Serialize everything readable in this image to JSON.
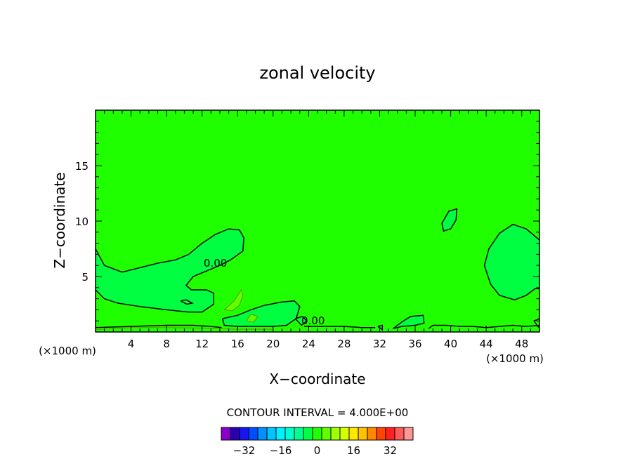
{
  "chart_data": {
    "type": "contour",
    "title": "zonal velocity",
    "xlabel": "X−coordinate",
    "ylabel": "Z−coordinate",
    "x_unit_label": "(×1000 m)",
    "z_unit_label": "(×1000 m)",
    "xlim": [
      0,
      50
    ],
    "ylim": [
      0,
      20
    ],
    "x_ticks": [
      4,
      8,
      12,
      16,
      20,
      24,
      28,
      32,
      36,
      40,
      44,
      48
    ],
    "y_ticks": [
      5,
      10,
      15
    ],
    "contour_interval_text": "CONTOUR INTERVAL = 4.000E+00",
    "contour_labels": [
      {
        "text": "0.00",
        "x": 13.5,
        "z": 6.2
      },
      {
        "text": "0.00",
        "x": 24.5,
        "z": 1.0
      }
    ],
    "contours_zero": [
      [
        [
          0,
          7.5
        ],
        [
          1,
          6
        ],
        [
          3,
          5.4
        ],
        [
          5,
          5.8
        ],
        [
          7,
          6.2
        ],
        [
          9,
          6.5
        ],
        [
          10.5,
          7
        ],
        [
          12,
          8
        ],
        [
          13.5,
          8.8
        ],
        [
          15,
          9.3
        ],
        [
          16.2,
          9.2
        ],
        [
          16.7,
          8.5
        ],
        [
          16.6,
          7.3
        ],
        [
          15.2,
          6.5
        ],
        [
          14,
          6
        ],
        [
          12.5,
          5.5
        ],
        [
          11,
          5
        ],
        [
          10.2,
          4.2
        ],
        [
          10.8,
          3.8
        ],
        [
          12.5,
          3.8
        ],
        [
          13.3,
          3.5
        ],
        [
          13.3,
          2.5
        ],
        [
          12,
          1.8
        ],
        [
          10.5,
          1.8
        ],
        [
          8,
          2
        ],
        [
          5,
          2.3
        ],
        [
          2.5,
          2.6
        ],
        [
          1,
          3
        ],
        [
          0,
          3.8
        ]
      ],
      [
        [
          14.3,
          1.2
        ],
        [
          16,
          1.5
        ],
        [
          17.5,
          2
        ],
        [
          19,
          2.4
        ],
        [
          21,
          2.7
        ],
        [
          22.4,
          2.8
        ],
        [
          23,
          2.3
        ],
        [
          22.6,
          1.2
        ],
        [
          21.5,
          0.6
        ],
        [
          20,
          0.5
        ],
        [
          18,
          0.5
        ],
        [
          16,
          0.5
        ],
        [
          14.5,
          0.6
        ],
        [
          14.3,
          1.2
        ]
      ],
      [
        [
          39,
          9.8
        ],
        [
          39.8,
          10.9
        ],
        [
          40.7,
          11.1
        ],
        [
          40.6,
          10.1
        ],
        [
          40,
          9.3
        ],
        [
          39.2,
          9.1
        ],
        [
          39,
          9.8
        ]
      ],
      [
        [
          50,
          8.3
        ],
        [
          48.5,
          9.3
        ],
        [
          47,
          9.7
        ],
        [
          45.5,
          8.9
        ],
        [
          44.3,
          7.5
        ],
        [
          43.8,
          6
        ],
        [
          44.5,
          4.3
        ],
        [
          45.5,
          3.3
        ],
        [
          47.2,
          2.9
        ],
        [
          48.5,
          3.3
        ],
        [
          49.5,
          3.9
        ],
        [
          50,
          3.9
        ]
      ],
      [
        [
          9.6,
          2.8
        ],
        [
          10.3,
          2.5
        ],
        [
          10.9,
          2.6
        ],
        [
          10.2,
          2.9
        ],
        [
          9.6,
          2.8
        ]
      ],
      [
        [
          22.5,
          1.2
        ],
        [
          23.3,
          1.4
        ],
        [
          23.8,
          1
        ],
        [
          23.2,
          0.6
        ],
        [
          22.5,
          1.2
        ]
      ],
      [
        [
          33.5,
          0.3
        ],
        [
          34.5,
          0.9
        ],
        [
          35.5,
          1.4
        ],
        [
          36.9,
          1.5
        ],
        [
          37,
          0.8
        ],
        [
          36,
          0.6
        ],
        [
          34.5,
          0.5
        ],
        [
          33.5,
          0.3
        ]
      ],
      [
        [
          31.8,
          0.5
        ],
        [
          32.3,
          0.6
        ],
        [
          32.3,
          0.2
        ],
        [
          31.8,
          0.5
        ]
      ],
      [
        [
          37.5,
          0.3
        ],
        [
          38,
          0.6
        ],
        [
          39.5,
          0.6
        ],
        [
          41,
          0.5
        ],
        [
          42.5,
          0.5
        ],
        [
          44,
          0.4
        ],
        [
          45.5,
          0.5
        ],
        [
          47,
          0.6
        ],
        [
          48.5,
          0.5
        ],
        [
          50,
          0.6
        ]
      ],
      [
        [
          50,
          1.2
        ],
        [
          49.4,
          1
        ],
        [
          49.8,
          0.5
        ],
        [
          50,
          0.4
        ]
      ],
      [
        [
          0,
          0.4
        ],
        [
          4,
          0.5
        ],
        [
          8,
          0.6
        ],
        [
          11,
          0.6
        ],
        [
          13,
          0.5
        ],
        [
          14.2,
          0.4
        ]
      ],
      [
        [
          23.5,
          0.5
        ],
        [
          26,
          0.5
        ],
        [
          28,
          0.5
        ],
        [
          30,
          0.4
        ],
        [
          31.5,
          0.4
        ]
      ]
    ],
    "contours_positive_4": [
      [
        [
          14.5,
          2
        ],
        [
          15.6,
          2.8
        ],
        [
          16.4,
          3.8
        ],
        [
          16.6,
          3.3
        ],
        [
          16.2,
          2.4
        ],
        [
          15.4,
          1.9
        ],
        [
          14.5,
          2
        ]
      ],
      [
        [
          17,
          1
        ],
        [
          17.5,
          1.6
        ],
        [
          18.3,
          1.4
        ],
        [
          17.8,
          0.9
        ],
        [
          17,
          1
        ]
      ],
      [
        [
          0,
          0.2
        ],
        [
          4,
          0.4
        ],
        [
          8,
          0.4
        ],
        [
          12,
          0.35
        ],
        [
          16,
          0.25
        ],
        [
          20,
          0.25
        ]
      ]
    ],
    "colorbar": {
      "colors": [
        "#8b00c8",
        "#2a00b5",
        "#1515f0",
        "#004cff",
        "#0090ff",
        "#00c4ff",
        "#00f0ff",
        "#00ffd0",
        "#00ff90",
        "#00ff40",
        "#20ff00",
        "#60ff00",
        "#a0ff00",
        "#d8ff00",
        "#ffe800",
        "#ffc000",
        "#ff8800",
        "#ff4400",
        "#ff2020",
        "#ff5a5a",
        "#ff9696"
      ],
      "tick_labels": [
        "−32",
        "−16",
        "0",
        "16",
        "32"
      ],
      "tick_values": [
        -32,
        -16,
        0,
        16,
        32
      ]
    }
  }
}
